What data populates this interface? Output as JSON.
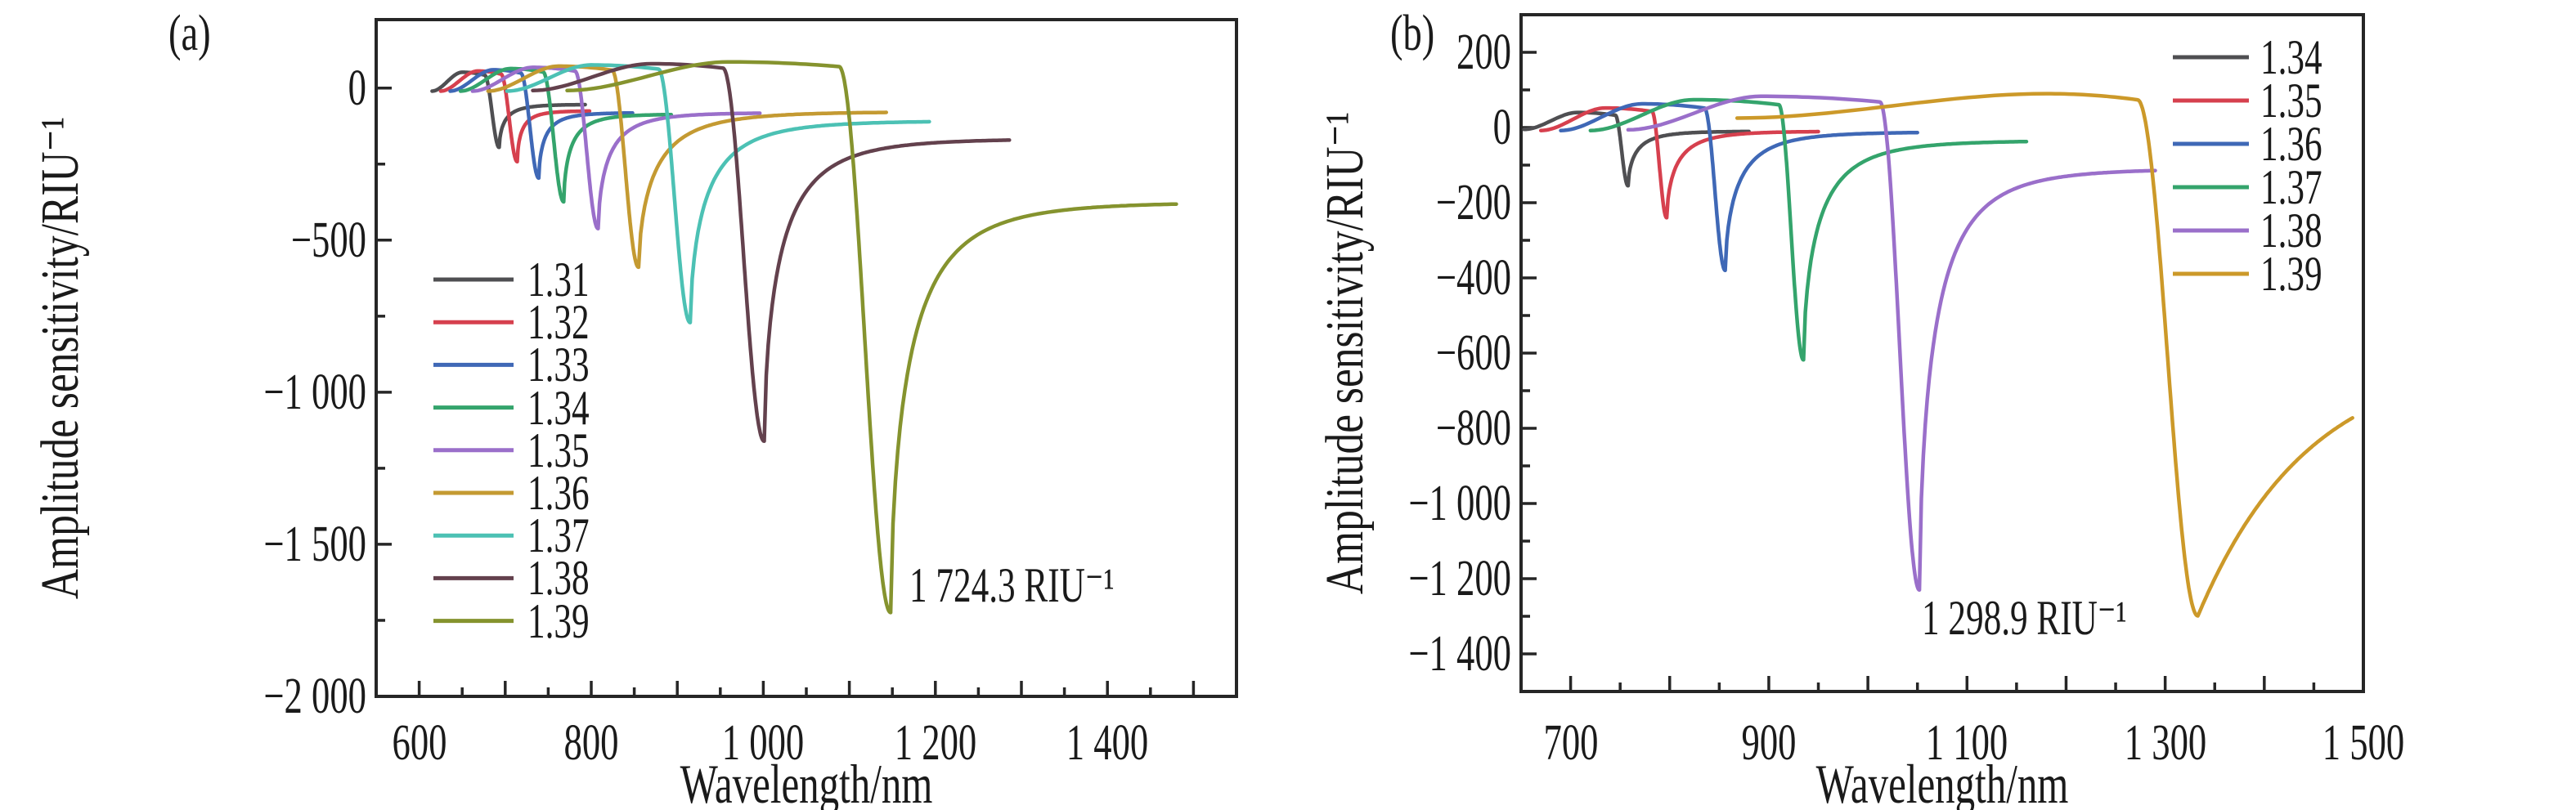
{
  "figure": {
    "background": "#ffffff",
    "text_color": "#1a1a1a",
    "frame_color": "#262626"
  },
  "chart_data": [
    {
      "id": "a",
      "type": "line",
      "panel_label": "(a)",
      "xlabel": "Wavelength/nm",
      "ylabel": "Amplitude sensitivity/RIU⁻¹",
      "xlim": [
        550,
        1550
      ],
      "ylim": [
        -2000,
        225
      ],
      "grid": false,
      "x_major_ticks": [
        600,
        800,
        1000,
        1200,
        1400
      ],
      "x_tick_labels": [
        "600",
        "800",
        "1 000",
        "1 200",
        "1 400"
      ],
      "x_tick_step": 50,
      "x_semi_step": 100,
      "y_major_ticks": [
        0,
        -500,
        -1000,
        -1500,
        -2000
      ],
      "y_tick_labels": [
        "0",
        "−500",
        "−1 000",
        "−1 500",
        "−2 000"
      ],
      "y_tick_step": 250,
      "y_semi_step": 500,
      "legend_position": "inside lower-left",
      "annotation": {
        "text": "1 724.3 RIU⁻¹",
        "px": [
          1112,
          686
        ]
      },
      "series": [
        {
          "label": "1.31",
          "color": "#4f4f52",
          "start": [
            615,
            -10
          ],
          "bump": [
            650,
            52
          ],
          "shoulder_x": 676,
          "dip": [
            693,
            -195
          ],
          "end": [
            793,
            -54
          ]
        },
        {
          "label": "1.32",
          "color": "#d6404e",
          "start": [
            625,
            -10
          ],
          "bump": [
            668,
            56
          ],
          "shoulder_x": 695,
          "dip": [
            714,
            -242
          ],
          "end": [
            798,
            -75
          ]
        },
        {
          "label": "1.33",
          "color": "#3f68b6",
          "start": [
            636,
            -10
          ],
          "bump": [
            686,
            60
          ],
          "shoulder_x": 718,
          "dip": [
            739,
            -296
          ],
          "end": [
            848,
            -81
          ]
        },
        {
          "label": "1.34",
          "color": "#34a46c",
          "start": [
            648,
            -10
          ],
          "bump": [
            706,
            64
          ],
          "shoulder_x": 744,
          "dip": [
            768,
            -374
          ],
          "end": [
            893,
            -86
          ]
        },
        {
          "label": "1.35",
          "color": "#9a6fca",
          "start": [
            662,
            -10
          ],
          "bump": [
            732,
            68
          ],
          "shoulder_x": 781,
          "dip": [
            808,
            -462
          ],
          "end": [
            996,
            -81
          ]
        },
        {
          "label": "1.36",
          "color": "#c49a32",
          "start": [
            680,
            -10
          ],
          "bump": [
            762,
            72
          ],
          "shoulder_x": 824,
          "dip": [
            855,
            -589
          ],
          "end": [
            1143,
            -78
          ]
        },
        {
          "label": "1.37",
          "color": "#4cc1b4",
          "start": [
            702,
            -10
          ],
          "bump": [
            800,
            76
          ],
          "shoulder_x": 878,
          "dip": [
            915,
            -771
          ],
          "end": [
            1193,
            -108
          ]
        },
        {
          "label": "1.38",
          "color": "#63414d",
          "start": [
            732,
            -8
          ],
          "bump": [
            870,
            80
          ],
          "shoulder_x": 953,
          "dip": [
            1001,
            -1161
          ],
          "end": [
            1286,
            -167
          ]
        },
        {
          "label": "1.39",
          "color": "#85932e",
          "start": [
            772,
            -8
          ],
          "bump": [
            960,
            86
          ],
          "shoulder_x": 1088,
          "dip": [
            1148,
            -1724.3
          ],
          "end": [
            1480,
            -376
          ]
        }
      ]
    },
    {
      "id": "b",
      "type": "line",
      "panel_label": "(b)",
      "xlabel": "Wavelength/nm",
      "ylabel": "Amplitude sensitivity/RIU⁻¹",
      "xlim": [
        650,
        1500
      ],
      "ylim": [
        -1500,
        300
      ],
      "grid": false,
      "x_major_ticks": [
        700,
        900,
        1100,
        1300,
        1500
      ],
      "x_tick_labels": [
        "700",
        "900",
        "1 100",
        "1 300",
        "1 500"
      ],
      "x_tick_step": 50,
      "x_semi_step": 100,
      "y_major_ticks": [
        200,
        0,
        -200,
        -400,
        -600,
        -800,
        -1000,
        -1200,
        -1400
      ],
      "y_tick_labels": [
        "200",
        "0",
        "−200",
        "−400",
        "−600",
        "−800",
        "−1 000",
        "−1 200",
        "−1 400"
      ],
      "y_tick_step": 100,
      "y_semi_step": 200,
      "legend_position": "inside upper-right",
      "annotation": {
        "text": "1 298.9 RIU⁻¹",
        "px": [
          2350,
          726
        ]
      },
      "series": [
        {
          "label": "1.34",
          "color": "#4f4f52",
          "start": [
            653,
            -5
          ],
          "bump": [
            707,
            40
          ],
          "shoulder_x": 745,
          "dip": [
            758,
            -155
          ],
          "end": [
            880,
            -10
          ]
        },
        {
          "label": "1.35",
          "color": "#d6404e",
          "start": [
            670,
            -8
          ],
          "bump": [
            735,
            52
          ],
          "shoulder_x": 782,
          "dip": [
            797,
            -240
          ],
          "end": [
            950,
            -10
          ]
        },
        {
          "label": "1.36",
          "color": "#3f68b6",
          "start": [
            690,
            -8
          ],
          "bump": [
            772,
            63
          ],
          "shoulder_x": 835,
          "dip": [
            856,
            -380
          ],
          "end": [
            1050,
            -12
          ]
        },
        {
          "label": "1.37",
          "color": "#34a46c",
          "start": [
            720,
            -8
          ],
          "bump": [
            824,
            74
          ],
          "shoulder_x": 910,
          "dip": [
            935,
            -618
          ],
          "end": [
            1160,
            -35
          ]
        },
        {
          "label": "1.38",
          "color": "#9a6fca",
          "start": [
            758,
            -6
          ],
          "bump": [
            892,
            83
          ],
          "shoulder_x": 1012,
          "dip": [
            1052,
            -1230
          ],
          "end": [
            1290,
            -110
          ]
        },
        {
          "label": "1.39",
          "color": "#cc9929",
          "start": [
            868,
            25
          ],
          "bump": [
            1180,
            90
          ],
          "shoulder_x": 1272,
          "dip": [
            1333,
            -1298.9
          ],
          "end": [
            1489,
            -780
          ],
          "rec": {
            "k": 1.4,
            "p": 1,
            "asym": -600
          }
        }
      ]
    }
  ]
}
